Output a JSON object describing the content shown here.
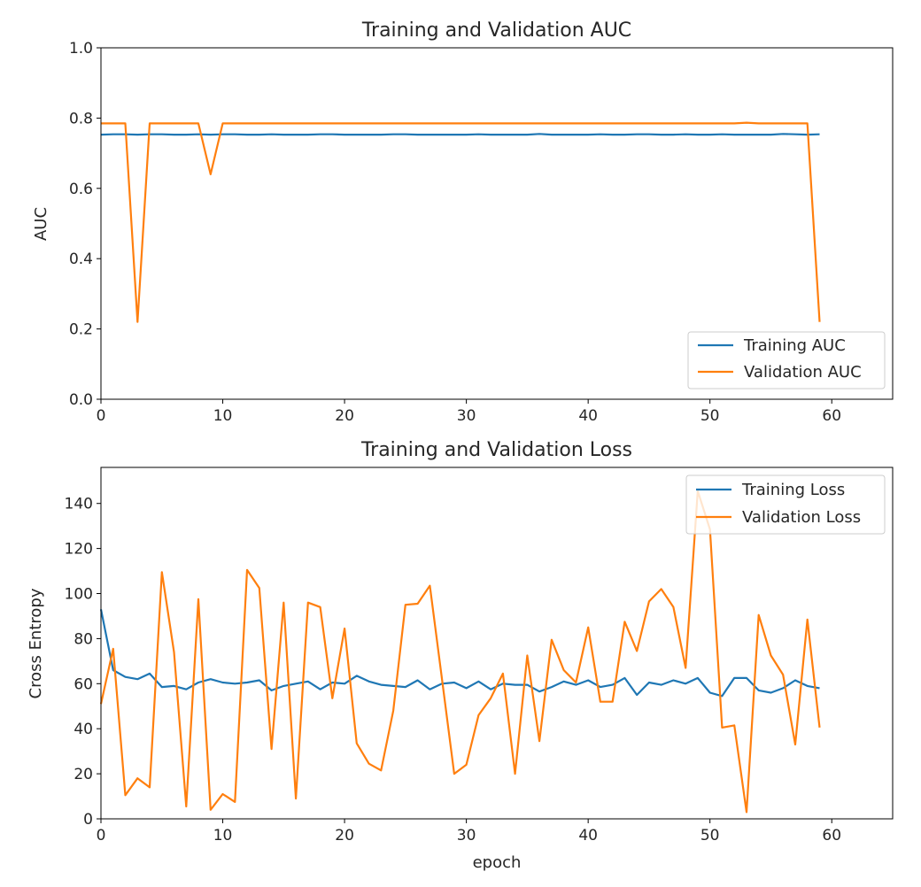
{
  "colors": {
    "training": "#1f77b4",
    "validation": "#ff7f0e",
    "axes": "#000000",
    "legend_border": "#cccccc"
  },
  "chart_data": [
    {
      "type": "line",
      "title": "Training and Validation AUC",
      "xlabel": "",
      "ylabel": "AUC",
      "xlim": [
        0,
        65
      ],
      "ylim": [
        0,
        1.0
      ],
      "xticks": [
        0,
        10,
        20,
        30,
        40,
        50,
        60
      ],
      "yticks": [
        0.0,
        0.2,
        0.4,
        0.6,
        0.8,
        1.0
      ],
      "ytick_labels": [
        "0.0",
        "0.2",
        "0.4",
        "0.6",
        "0.8",
        "1.0"
      ],
      "legend_position": "lower right",
      "grid": false,
      "x": [
        0,
        1,
        2,
        3,
        4,
        5,
        6,
        7,
        8,
        9,
        10,
        11,
        12,
        13,
        14,
        15,
        16,
        17,
        18,
        19,
        20,
        21,
        22,
        23,
        24,
        25,
        26,
        27,
        28,
        29,
        30,
        31,
        32,
        33,
        34,
        35,
        36,
        37,
        38,
        39,
        40,
        41,
        42,
        43,
        44,
        45,
        46,
        47,
        48,
        49,
        50,
        51,
        52,
        53,
        54,
        55,
        56,
        57,
        58,
        59
      ],
      "series": [
        {
          "name": "Training AUC",
          "color": "#1f77b4",
          "values": [
            0.753,
            0.754,
            0.754,
            0.753,
            0.754,
            0.754,
            0.753,
            0.753,
            0.754,
            0.753,
            0.754,
            0.754,
            0.753,
            0.753,
            0.754,
            0.753,
            0.753,
            0.753,
            0.754,
            0.754,
            0.753,
            0.753,
            0.753,
            0.753,
            0.754,
            0.754,
            0.753,
            0.753,
            0.753,
            0.753,
            0.753,
            0.754,
            0.753,
            0.753,
            0.753,
            0.753,
            0.755,
            0.753,
            0.753,
            0.753,
            0.753,
            0.754,
            0.753,
            0.753,
            0.754,
            0.754,
            0.753,
            0.753,
            0.754,
            0.753,
            0.753,
            0.754,
            0.753,
            0.753,
            0.753,
            0.753,
            0.755,
            0.754,
            0.753,
            0.754
          ]
        },
        {
          "name": "Validation AUC",
          "color": "#ff7f0e",
          "values": [
            0.785,
            0.785,
            0.785,
            0.22,
            0.785,
            0.785,
            0.785,
            0.785,
            0.785,
            0.64,
            0.785,
            0.785,
            0.785,
            0.785,
            0.785,
            0.785,
            0.785,
            0.785,
            0.785,
            0.785,
            0.785,
            0.785,
            0.785,
            0.785,
            0.785,
            0.785,
            0.785,
            0.785,
            0.785,
            0.785,
            0.785,
            0.785,
            0.785,
            0.785,
            0.785,
            0.785,
            0.785,
            0.785,
            0.785,
            0.785,
            0.785,
            0.785,
            0.785,
            0.785,
            0.785,
            0.785,
            0.785,
            0.785,
            0.785,
            0.785,
            0.785,
            0.785,
            0.785,
            0.787,
            0.785,
            0.785,
            0.785,
            0.785,
            0.785,
            0.22
          ]
        }
      ]
    },
    {
      "type": "line",
      "title": "Training and Validation Loss",
      "xlabel": "epoch",
      "ylabel": "Cross Entropy",
      "xlim": [
        0,
        65
      ],
      "ylim": [
        0,
        156
      ],
      "xticks": [
        0,
        10,
        20,
        30,
        40,
        50,
        60
      ],
      "yticks": [
        0,
        20,
        40,
        60,
        80,
        100,
        120,
        140
      ],
      "ytick_labels": [
        "0",
        "20",
        "40",
        "60",
        "80",
        "100",
        "120",
        "140"
      ],
      "legend_position": "upper right",
      "grid": false,
      "x": [
        0,
        1,
        2,
        3,
        4,
        5,
        6,
        7,
        8,
        9,
        10,
        11,
        12,
        13,
        14,
        15,
        16,
        17,
        18,
        19,
        20,
        21,
        22,
        23,
        24,
        25,
        26,
        27,
        28,
        29,
        30,
        31,
        32,
        33,
        34,
        35,
        36,
        37,
        38,
        39,
        40,
        41,
        42,
        43,
        44,
        45,
        46,
        47,
        48,
        49,
        50,
        51,
        52,
        53,
        54,
        55,
        56,
        57,
        58,
        59
      ],
      "series": [
        {
          "name": "Training Loss",
          "color": "#1f77b4",
          "values": [
            93,
            66,
            63,
            62,
            64.5,
            58.5,
            59,
            57.5,
            60.5,
            62,
            60.5,
            60,
            60.5,
            61.5,
            57,
            59,
            60,
            61,
            57.5,
            60.5,
            60,
            63.5,
            61,
            59.5,
            59,
            58.5,
            61.5,
            57.5,
            60,
            60.5,
            58,
            61,
            57.5,
            60,
            59.5,
            59.5,
            56.5,
            58.5,
            61,
            59.5,
            61.5,
            58.5,
            59.5,
            62.5,
            55,
            60.5,
            59.5,
            61.5,
            60,
            62.5,
            56,
            54.5,
            62.5,
            62.5,
            57,
            56,
            58,
            61.5,
            59,
            58
          ]
        },
        {
          "name": "Validation Loss",
          "color": "#ff7f0e",
          "values": [
            51,
            75.5,
            10.5,
            18,
            14,
            109.5,
            74,
            5.5,
            97.5,
            4,
            11,
            7.5,
            110.5,
            102.5,
            31,
            96,
            9,
            96,
            94,
            53.5,
            84.5,
            33.5,
            24.5,
            21.5,
            48,
            95,
            95.5,
            103.5,
            62,
            20,
            24,
            46,
            53.5,
            64.5,
            20,
            72.5,
            34.5,
            79.5,
            66,
            60.5,
            85,
            52,
            52,
            87.5,
            74.5,
            96.5,
            102,
            94,
            67,
            145.5,
            128.5,
            40.5,
            41.5,
            3,
            90.5,
            72.5,
            64,
            33,
            88.5,
            40.5
          ]
        }
      ]
    }
  ]
}
